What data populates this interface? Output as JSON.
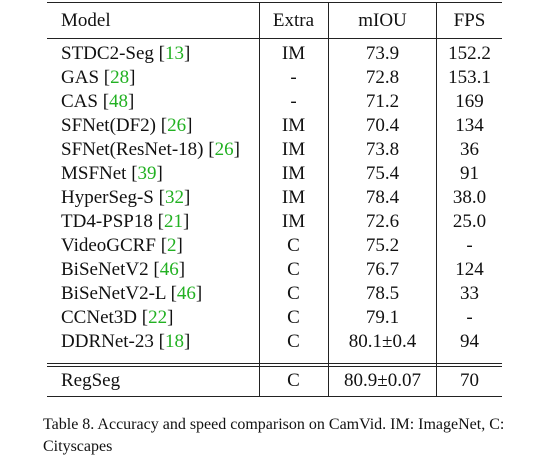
{
  "table": {
    "headers": {
      "model": "Model",
      "extra": "Extra",
      "miou": "mIOU",
      "fps": "FPS"
    },
    "rows": [
      {
        "model": "STDC2-Seg",
        "ref": "13",
        "extra": "IM",
        "miou": "73.9",
        "fps": "152.2"
      },
      {
        "model": "GAS",
        "ref": "28",
        "extra": "-",
        "miou": "72.8",
        "fps": "153.1"
      },
      {
        "model": "CAS",
        "ref": "48",
        "extra": "-",
        "miou": "71.2",
        "fps": "169"
      },
      {
        "model": "SFNet(DF2)",
        "ref": "26",
        "extra": "IM",
        "miou": "70.4",
        "fps": "134"
      },
      {
        "model": "SFNet(ResNet-18)",
        "ref": "26",
        "extra": "IM",
        "miou": "73.8",
        "fps": "36"
      },
      {
        "model": "MSFNet",
        "ref": "39",
        "extra": "IM",
        "miou": "75.4",
        "fps": "91"
      },
      {
        "model": "HyperSeg-S",
        "ref": "32",
        "extra": "IM",
        "miou": "78.4",
        "fps": "38.0"
      },
      {
        "model": "TD4-PSP18",
        "ref": "21",
        "extra": "IM",
        "miou": "72.6",
        "fps": "25.0"
      },
      {
        "model": "VideoGCRF",
        "ref": "2",
        "extra": "C",
        "miou": "75.2",
        "fps": "-"
      },
      {
        "model": "BiSeNetV2",
        "ref": "46",
        "extra": "C",
        "miou": "76.7",
        "fps": "124"
      },
      {
        "model": "BiSeNetV2-L",
        "ref": "46",
        "extra": "C",
        "miou": "78.5",
        "fps": "33"
      },
      {
        "model": "CCNet3D",
        "ref": "22",
        "extra": "C",
        "miou": "79.1",
        "fps": "-"
      },
      {
        "model": "DDRNet-23",
        "ref": "18",
        "extra": "C",
        "miou": "80.1±0.4",
        "fps": "94"
      }
    ],
    "final_row": {
      "model": "RegSeg",
      "extra": "C",
      "miou": "80.9±0.07",
      "fps": "70"
    }
  },
  "caption": "Table 8.  Accuracy and speed comparison on CamVid. IM: ImageNet, C: Cityscapes",
  "citation_color": "#22b122"
}
